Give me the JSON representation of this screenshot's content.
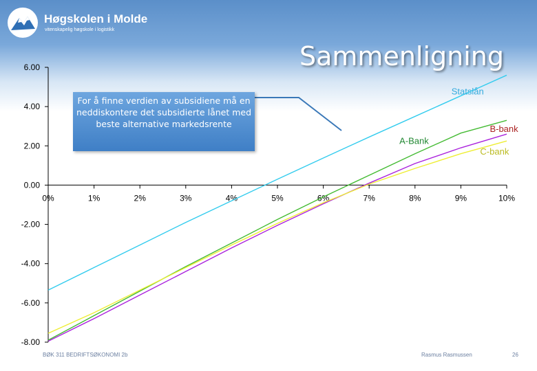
{
  "header": {
    "logo_title": "Høgskolen i Molde",
    "logo_subtitle": "vitenskapelig høgskole i logistikk",
    "slide_title": "Sammenligning"
  },
  "callout": {
    "text": "For å finne verdien av subsidiene må en neddiskontere det subsidierte lånet med beste alternative markedsrente"
  },
  "footer": {
    "left": "BØK 311 BEDRIFTSØKONOMI 2b",
    "center": "Rasmus Rasmussen",
    "page": "26"
  },
  "colors": {
    "accent": "#4f8fd6",
    "callout_line": "#3a78b8"
  },
  "chart_data": {
    "type": "line",
    "x": [
      0,
      1,
      2,
      3,
      4,
      5,
      6,
      7,
      8,
      9,
      10
    ],
    "x_tick_labels": [
      "0%",
      "1%",
      "2%",
      "3%",
      "4%",
      "5%",
      "6%",
      "7%",
      "8%",
      "9%",
      "10%"
    ],
    "y_tick_labels": [
      "6.00",
      "4.00",
      "2.00",
      "0.00",
      "-2.00",
      "-4.00",
      "-6.00",
      "-8.00"
    ],
    "y_ticks": [
      6,
      4,
      2,
      0,
      -2,
      -4,
      -6,
      -8
    ],
    "xlim": [
      0,
      10
    ],
    "ylim": [
      -8,
      6
    ],
    "grid": false,
    "series": [
      {
        "name": "Statslån",
        "color": "#33ccee",
        "label_color": "#33aadd",
        "label_pos": "upper-right",
        "values": [
          -5.35,
          -4.2,
          -3.05,
          -1.9,
          -0.8,
          0.3,
          1.38,
          2.45,
          3.5,
          4.55,
          5.6
        ]
      },
      {
        "name": "A-Bank",
        "color": "#44bb33",
        "label_color": "#228833",
        "label_pos": "middle-right",
        "values": [
          -7.9,
          -6.65,
          -5.4,
          -4.15,
          -2.95,
          -1.75,
          -0.6,
          0.5,
          1.6,
          2.65,
          3.3
        ]
      },
      {
        "name": "B-bank",
        "color": "#aa22dd",
        "label_color": "#aa2222",
        "label_pos": "right",
        "values": [
          -7.95,
          -6.8,
          -5.6,
          -4.4,
          -3.2,
          -2.05,
          -0.95,
          0.1,
          1.1,
          1.9,
          2.6
        ]
      },
      {
        "name": "C-bank",
        "color": "#eeee33",
        "label_color": "#bbbb22",
        "label_pos": "lower-right",
        "values": [
          -7.55,
          -6.5,
          -5.35,
          -4.2,
          -3.05,
          -1.95,
          -0.9,
          0.05,
          0.85,
          1.6,
          2.25
        ]
      }
    ],
    "annotation": {
      "text_ref": "callout.text"
    }
  }
}
